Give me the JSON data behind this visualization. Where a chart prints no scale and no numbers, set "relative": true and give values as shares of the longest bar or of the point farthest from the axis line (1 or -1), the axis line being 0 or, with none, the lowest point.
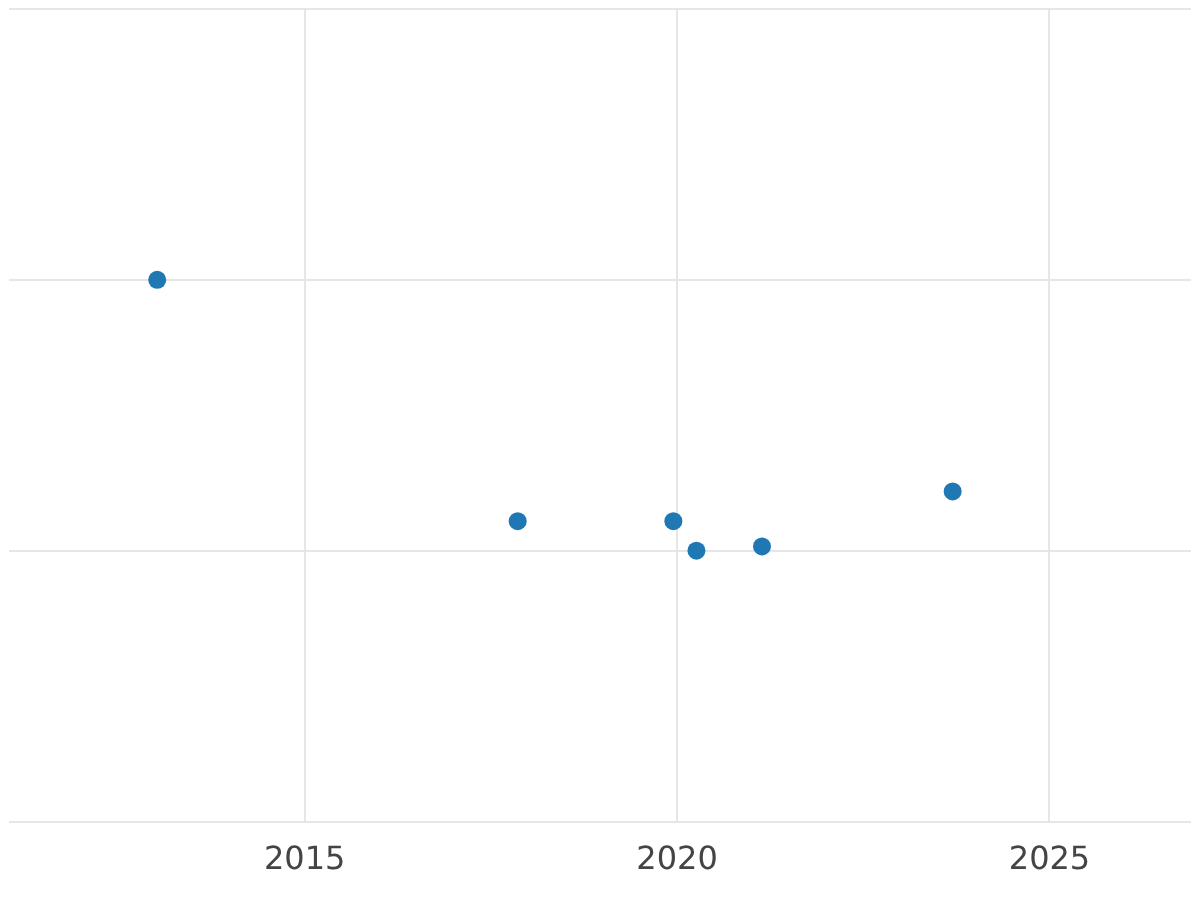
{
  "chart_data": {
    "type": "scatter",
    "relative": true,
    "x": [
      2013.02,
      2017.86,
      2019.95,
      2020.26,
      2021.14,
      2023.7
    ],
    "series": [
      {
        "color": "#1f77b4",
        "values": [
          1,
          0.109,
          0.109,
          0,
          0.016,
          0.219
        ]
      }
    ],
    "xlim": [
      2011.03,
      2026.9
    ],
    "xticks": [
      2015,
      2020,
      2025
    ],
    "grid": true,
    "tick_labels": "x",
    "marker": "circle"
  }
}
